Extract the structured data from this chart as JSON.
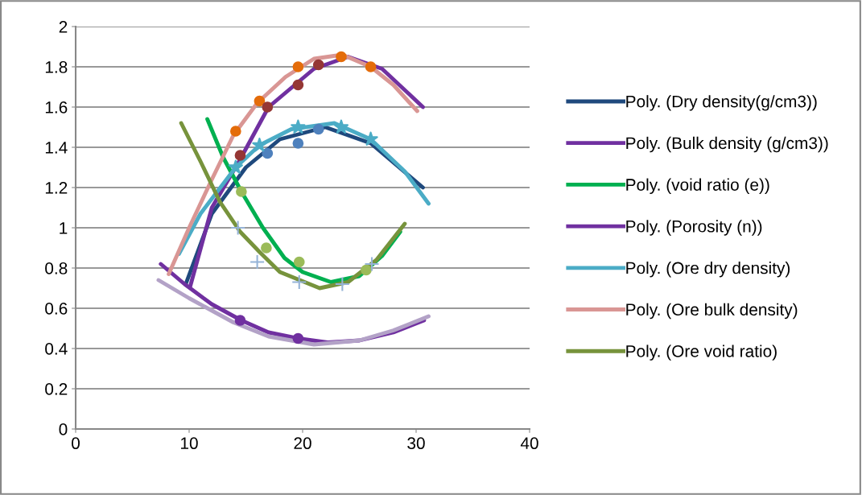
{
  "chart_data": {
    "type": "line",
    "xlim": [
      0,
      40
    ],
    "ylim": [
      0,
      2
    ],
    "xticks": [
      0,
      10,
      20,
      30,
      40
    ],
    "yticks": [
      0,
      0.2,
      0.4,
      0.6,
      0.8,
      1,
      1.2,
      1.4,
      1.6,
      1.8,
      2
    ],
    "grid": "y",
    "legend": "right",
    "marker": "none",
    "line_style": "solid",
    "series": [
      {
        "name": "Poly. (Dry density(g/cm3))",
        "color": "#1f497d",
        "x": [
          9.7,
          12,
          15,
          18,
          22,
          26,
          30.6
        ],
        "values": [
          0.72,
          1.07,
          1.3,
          1.44,
          1.5,
          1.42,
          1.2
        ]
      },
      {
        "name": "Poly. (Bulk density (g/cm3))",
        "color": "#7030a0",
        "x": [
          10.1,
          12,
          14.4,
          17,
          21,
          24,
          27,
          30.6
        ],
        "values": [
          0.71,
          1.1,
          1.33,
          1.6,
          1.79,
          1.85,
          1.79,
          1.6
        ]
      },
      {
        "name": "Poly. (void ratio (e))",
        "color": "#00b050",
        "x": [
          11.6,
          13,
          14.6,
          16.5,
          18.4,
          20,
          22.5,
          25,
          27,
          28.6
        ],
        "values": [
          1.54,
          1.35,
          1.18,
          1.0,
          0.85,
          0.78,
          0.73,
          0.76,
          0.86,
          0.98
        ]
      },
      {
        "name": "Poly. (Porosity (n))",
        "color": "#7030a0",
        "x": [
          7.5,
          9.6,
          12,
          14.6,
          17,
          19.6,
          22.2,
          25,
          28,
          30.7
        ],
        "values": [
          0.82,
          0.72,
          0.62,
          0.54,
          0.48,
          0.45,
          0.43,
          0.44,
          0.48,
          0.54
        ]
      },
      {
        "name": "Poly. (Ore dry density)",
        "color": "#4bacc6",
        "x": [
          9.1,
          11,
          14.1,
          16.2,
          19,
          22.8,
          26,
          29,
          31.1
        ],
        "values": [
          0.87,
          1.07,
          1.3,
          1.41,
          1.49,
          1.52,
          1.44,
          1.28,
          1.12
        ]
      },
      {
        "name": "Poly. (Ore bulk density)",
        "color": "#d99694",
        "x": [
          8.2,
          10,
          12,
          13.9,
          16,
          18.5,
          21,
          23.5,
          26,
          28,
          30.1
        ],
        "values": [
          0.77,
          1.0,
          1.24,
          1.46,
          1.62,
          1.75,
          1.84,
          1.86,
          1.8,
          1.71,
          1.58
        ]
      },
      {
        "name": "Poly. (Ore void ratio)",
        "color": "#77933c",
        "x": [
          9.3,
          11,
          12.7,
          14.5,
          16.2,
          18,
          21.5,
          24,
          26.5,
          29
        ],
        "values": [
          1.52,
          1.33,
          1.13,
          0.98,
          0.88,
          0.78,
          0.7,
          0.73,
          0.84,
          1.02
        ]
      },
      {
        "color": "#b3a2c7",
        "x": [
          7.3,
          10,
          13.9,
          17,
          21,
          25,
          28,
          31.1
        ],
        "values": [
          0.74,
          0.65,
          0.53,
          0.46,
          0.42,
          0.44,
          0.49,
          0.56
        ]
      },
      {
        "type": "scatter",
        "marker": "circle",
        "color": "#e46c0a",
        "x": [
          14.1,
          16.2,
          19.6,
          23.4,
          26
        ],
        "values": [
          1.48,
          1.63,
          1.8,
          1.85,
          1.8
        ]
      },
      {
        "type": "scatter",
        "marker": "circle",
        "color": "#953735",
        "x": [
          14.5,
          16.9,
          19.6,
          21.4
        ],
        "values": [
          1.36,
          1.6,
          1.71,
          1.81
        ]
      },
      {
        "type": "scatter",
        "marker": "circle",
        "color": "#4f81bd",
        "x": [
          16.9,
          19.6,
          21.4
        ],
        "values": [
          1.37,
          1.42,
          1.49
        ]
      },
      {
        "type": "scatter",
        "marker": "circle",
        "color": "#9bbb59",
        "x": [
          14.6,
          16.8,
          19.7,
          25.6
        ],
        "values": [
          1.18,
          0.9,
          0.83,
          0.79
        ]
      },
      {
        "type": "scatter",
        "marker": "star",
        "color": "#4bacc6",
        "x": [
          14.1,
          16.2,
          19.6,
          23.4,
          26
        ],
        "values": [
          1.3,
          1.41,
          1.5,
          1.5,
          1.44
        ]
      },
      {
        "type": "scatter",
        "marker": "cross",
        "color": "#95b3d7",
        "x": [
          14.3,
          16,
          19.7,
          23.5,
          26.1
        ],
        "values": [
          1.0,
          0.83,
          0.73,
          0.72,
          0.82
        ]
      },
      {
        "type": "scatter",
        "marker": "circle",
        "color": "#7030a0",
        "x": [
          14.5,
          19.6
        ],
        "values": [
          0.54,
          0.45
        ]
      }
    ]
  }
}
